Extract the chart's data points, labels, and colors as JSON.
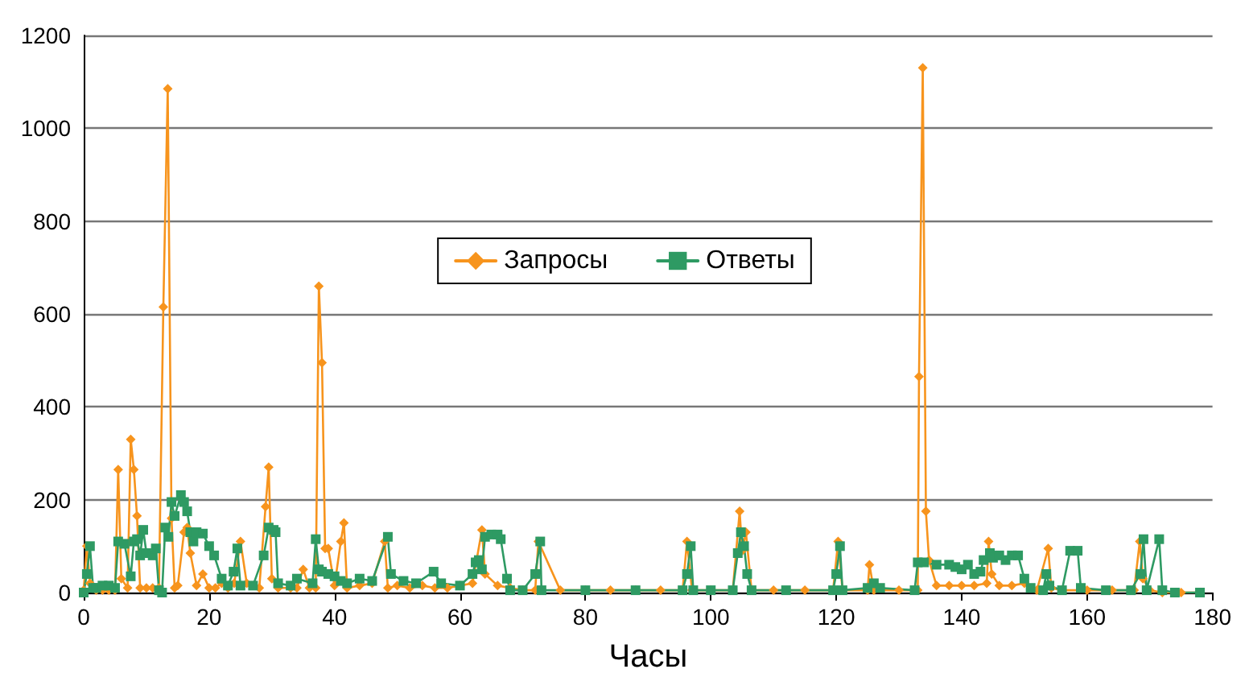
{
  "chart_data": {
    "type": "line",
    "xlabel": "Часы",
    "xlim": [
      0,
      180
    ],
    "xticks": [
      0,
      20,
      40,
      60,
      80,
      100,
      120,
      140,
      160,
      180
    ],
    "ylim": [
      0,
      1200
    ],
    "yticks": [
      0,
      200,
      400,
      600,
      800,
      1000,
      1200
    ],
    "grid": "y",
    "legend": "center",
    "line_style": "solid",
    "series": [
      {
        "name": "Запросы",
        "color": "#f7941d",
        "marker": "diamond",
        "x": [
          0,
          0.5,
          1,
          2,
          3,
          4,
          5,
          5.5,
          6,
          7,
          7.5,
          8,
          8.5,
          9,
          10,
          11,
          12,
          12.7,
          13.4,
          14,
          14.5,
          15,
          16,
          16.5,
          17,
          18,
          19,
          20,
          21,
          22,
          23,
          24,
          25,
          26,
          28,
          29,
          29.5,
          30,
          31,
          33,
          34,
          35,
          36,
          37,
          37.5,
          38,
          38.5,
          39,
          40,
          41,
          41.5,
          42,
          44,
          46,
          48,
          48.5,
          50,
          52,
          54,
          56,
          58,
          60,
          62,
          63.5,
          64,
          66,
          68,
          70,
          72,
          72.5,
          76,
          80,
          84,
          88,
          92,
          95.5,
          96.2,
          97,
          100,
          103.5,
          104.6,
          105,
          105.6,
          106.5,
          110,
          115,
          119.5,
          120.3,
          121,
          125,
          125.3,
          126,
          130,
          133,
          133.2,
          133.8,
          134.3,
          134.8,
          136,
          138,
          140,
          142,
          144,
          144.3,
          144.8,
          146,
          148,
          150,
          152,
          153.8,
          154.3,
          156,
          160,
          164,
          167.5,
          168.4,
          168.9,
          170,
          172,
          175,
          178
        ],
        "values": [
          5,
          100,
          20,
          5,
          5,
          5,
          5,
          265,
          30,
          10,
          330,
          265,
          165,
          10,
          10,
          10,
          10,
          615,
          1085,
          160,
          10,
          15,
          130,
          140,
          85,
          15,
          40,
          10,
          10,
          20,
          10,
          20,
          110,
          20,
          10,
          185,
          270,
          30,
          10,
          10,
          10,
          50,
          10,
          10,
          660,
          495,
          95,
          95,
          15,
          110,
          150,
          10,
          15,
          20,
          110,
          10,
          15,
          10,
          15,
          10,
          10,
          15,
          20,
          135,
          40,
          15,
          10,
          5,
          5,
          110,
          5,
          5,
          5,
          5,
          5,
          5,
          110,
          5,
          5,
          5,
          175,
          90,
          130,
          5,
          5,
          5,
          5,
          110,
          5,
          5,
          60,
          5,
          5,
          5,
          465,
          1130,
          175,
          70,
          15,
          15,
          15,
          15,
          20,
          110,
          40,
          15,
          15,
          20,
          5,
          95,
          10,
          5,
          5,
          5,
          5,
          110,
          30,
          5,
          0,
          0,
          0
        ]
      },
      {
        "name": "Ответы",
        "color": "#2e9a63",
        "marker": "square",
        "x": [
          0,
          0.5,
          1,
          1.5,
          2,
          3,
          4,
          5,
          5.5,
          6.5,
          7.5,
          8,
          8.5,
          9,
          9.5,
          10,
          11,
          11.5,
          12,
          12.5,
          13,
          13.5,
          14,
          14.5,
          15.5,
          16,
          16.5,
          17,
          17.5,
          18,
          19,
          20,
          20.8,
          22,
          23,
          23.9,
          24.5,
          25,
          27,
          28.7,
          29.5,
          30.3,
          30.6,
          31,
          33,
          34,
          36.5,
          37,
          37.5,
          38,
          39,
          40,
          41,
          42,
          44,
          46,
          48.5,
          49,
          51,
          53,
          55.8,
          57,
          60,
          62,
          62.5,
          63,
          63.5,
          64,
          65,
          66,
          66.5,
          67.5,
          68,
          70,
          72,
          72.8,
          73,
          80,
          88,
          95.5,
          96.2,
          96.8,
          97.2,
          100,
          103.5,
          104.3,
          104.8,
          105.3,
          105.8,
          106.5,
          112,
          119.5,
          120,
          120.6,
          121,
          125,
          126,
          127,
          132.5,
          133,
          134,
          136,
          138,
          139,
          140,
          141,
          142,
          143,
          143.5,
          144.5,
          145,
          146,
          147,
          148,
          149,
          150,
          151,
          153,
          153.5,
          154,
          156,
          157.3,
          158.5,
          159,
          163,
          167,
          168.5,
          169,
          169.5,
          171.5,
          172,
          174,
          178
        ],
        "values": [
          0,
          40,
          100,
          10,
          10,
          15,
          15,
          10,
          110,
          105,
          35,
          110,
          115,
          80,
          135,
          85,
          80,
          95,
          5,
          0,
          140,
          120,
          195,
          165,
          210,
          195,
          175,
          130,
          110,
          130,
          127,
          100,
          80,
          30,
          15,
          45,
          95,
          15,
          15,
          80,
          140,
          135,
          130,
          20,
          15,
          30,
          20,
          115,
          50,
          45,
          40,
          35,
          25,
          20,
          30,
          25,
          120,
          40,
          25,
          20,
          45,
          20,
          15,
          40,
          65,
          70,
          50,
          120,
          125,
          125,
          115,
          30,
          5,
          5,
          40,
          110,
          5,
          5,
          5,
          5,
          40,
          100,
          5,
          5,
          5,
          85,
          130,
          100,
          40,
          5,
          5,
          5,
          40,
          100,
          5,
          10,
          20,
          10,
          5,
          65,
          65,
          60,
          60,
          55,
          50,
          60,
          40,
          45,
          70,
          85,
          75,
          80,
          70,
          80,
          80,
          30,
          10,
          5,
          40,
          15,
          5,
          90,
          90,
          10,
          5,
          5,
          40,
          115,
          5,
          115,
          5,
          0,
          0
        ]
      }
    ]
  }
}
